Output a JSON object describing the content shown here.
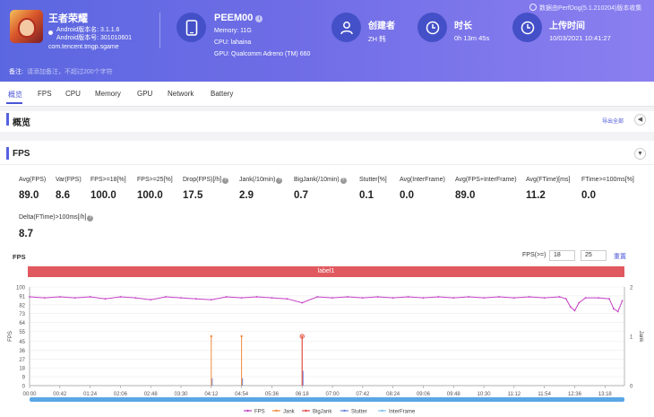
{
  "app": {
    "name": "王者荣耀",
    "android_version_name": "Android版本名: 3.1.1.6",
    "android_version_code": "Android版本号: 301010601",
    "package": "com.tencent.tmgp.sgame"
  },
  "device": {
    "name": "PEEM00",
    "memory": "Memory: 11G",
    "cpu": "CPU: lahaina",
    "gpu": "GPU: Qualcomm Adreno (TM) 660"
  },
  "creator": {
    "label": "创建者",
    "value": "ZH 韩"
  },
  "duration": {
    "label": "时长",
    "value": "0h 13m 45s"
  },
  "upload": {
    "label": "上传时间",
    "value": "10/03/2021 10:41:27"
  },
  "perfdog_note": "数据由PerfDog(5.1.210204)版本收集",
  "note": {
    "label": "备注:",
    "placeholder": "请添加备注，不超过200个字符"
  },
  "tabs": [
    "概览",
    "FPS",
    "CPU",
    "Memory",
    "GPU",
    "Network",
    "Battery"
  ],
  "overview": {
    "title": "概览",
    "export": "导出全部",
    "collapse_glyph": "◀"
  },
  "fps_section": {
    "title": "FPS",
    "collapse_glyph": "▼",
    "metrics_row1": [
      {
        "label": "Avg(FPS)",
        "value": "89.0",
        "help": false
      },
      {
        "label": "Var(FPS)",
        "value": "8.6",
        "help": false
      },
      {
        "label": "FPS>=18[%]",
        "value": "100.0",
        "help": false
      },
      {
        "label": "FPS>=25[%]",
        "value": "100.0",
        "help": false
      },
      {
        "label": "Drop(FPS)[/h]",
        "value": "17.5",
        "help": true
      },
      {
        "label": "Jank(/10min)",
        "value": "2.9",
        "help": true
      },
      {
        "label": "BigJank(/10min)",
        "value": "0.7",
        "help": true
      },
      {
        "label": "Stutter[%]",
        "value": "0.1",
        "help": false
      },
      {
        "label": "Avg(InterFrame)",
        "value": "0.0",
        "help": false
      },
      {
        "label": "Avg(FPS+InterFrame)",
        "value": "89.0",
        "help": false
      },
      {
        "label": "Avg(FTime)[ms]",
        "value": "11.2",
        "help": false
      },
      {
        "label": "FTime>=100ms[%]",
        "value": "0.0",
        "help": false
      }
    ],
    "metrics_row2": [
      {
        "label": "Delta(FTime)>100ms[/h]",
        "value": "8.7",
        "help": true
      }
    ]
  },
  "chart_header": {
    "caption": "FPS",
    "threshold_label": "FPS(>=)",
    "threshold_values": [
      "18",
      "25"
    ],
    "reset": "重置",
    "label_bar": "label1"
  },
  "colors": {
    "fps": "#c43fc4",
    "jank": "#f0883a",
    "bigjank": "#e04848",
    "stutter": "#6b7fe0",
    "interframe": "#7ec0e8",
    "accent": "#5562e0"
  },
  "chart_data": {
    "type": "line",
    "y_label": "FPS",
    "y2_label": "Jank",
    "y_ticks": [
      "100",
      "91",
      "82",
      "73",
      "64",
      "55",
      "45",
      "36",
      "27",
      "18",
      "9",
      "0"
    ],
    "y2_ticks": [
      "2",
      "1",
      "0"
    ],
    "ylim": [
      0,
      100
    ],
    "y2lim": [
      0,
      2
    ],
    "x_ticks": [
      "00:00",
      "00:42",
      "01:24",
      "02:06",
      "02:48",
      "03:30",
      "04:12",
      "04:54",
      "05:36",
      "06:18",
      "07:00",
      "07:42",
      "08:24",
      "09:06",
      "09:48",
      "10:30",
      "11:12",
      "11:54",
      "12:36",
      "13:18"
    ],
    "series": [
      {
        "name": "FPS",
        "points": [
          [
            "00:00",
            90
          ],
          [
            "00:21",
            89
          ],
          [
            "00:42",
            90
          ],
          [
            "01:03",
            89
          ],
          [
            "01:24",
            90
          ],
          [
            "01:45",
            88
          ],
          [
            "02:06",
            90
          ],
          [
            "02:27",
            89
          ],
          [
            "02:48",
            87
          ],
          [
            "03:09",
            90
          ],
          [
            "03:30",
            89
          ],
          [
            "03:51",
            88
          ],
          [
            "04:12",
            87
          ],
          [
            "04:33",
            90
          ],
          [
            "04:54",
            89
          ],
          [
            "05:15",
            90
          ],
          [
            "05:36",
            89
          ],
          [
            "05:57",
            88
          ],
          [
            "06:18",
            84
          ],
          [
            "06:39",
            90
          ],
          [
            "07:00",
            89
          ],
          [
            "07:21",
            90
          ],
          [
            "07:42",
            89
          ],
          [
            "08:03",
            90
          ],
          [
            "08:24",
            89
          ],
          [
            "08:45",
            90
          ],
          [
            "09:06",
            89
          ],
          [
            "09:27",
            90
          ],
          [
            "09:48",
            89
          ],
          [
            "10:09",
            90
          ],
          [
            "10:30",
            89
          ],
          [
            "10:51",
            90
          ],
          [
            "11:12",
            89
          ],
          [
            "11:33",
            90
          ],
          [
            "11:54",
            89
          ],
          [
            "12:15",
            90
          ],
          [
            "12:24",
            88
          ],
          [
            "12:30",
            80
          ],
          [
            "12:36",
            76
          ],
          [
            "12:42",
            84
          ],
          [
            "12:51",
            89
          ],
          [
            "13:09",
            89
          ],
          [
            "13:24",
            88
          ],
          [
            "13:30",
            78
          ],
          [
            "13:36",
            75
          ],
          [
            "13:42",
            86
          ]
        ]
      },
      {
        "name": "Jank",
        "points": [
          [
            "04:12",
            1
          ],
          [
            "04:54",
            1
          ],
          [
            "06:18",
            1
          ]
        ]
      },
      {
        "name": "BigJank",
        "points": [
          [
            "06:18",
            1
          ]
        ]
      },
      {
        "name": "Stutter",
        "points": [
          [
            "04:12",
            0.15
          ],
          [
            "04:54",
            0.15
          ],
          [
            "06:18",
            0.3
          ]
        ]
      },
      {
        "name": "InterFrame",
        "points": []
      }
    ],
    "legend": [
      "FPS",
      "Jank",
      "BigJank",
      "Stutter",
      "InterFrame"
    ],
    "legend_position": "bottom"
  }
}
